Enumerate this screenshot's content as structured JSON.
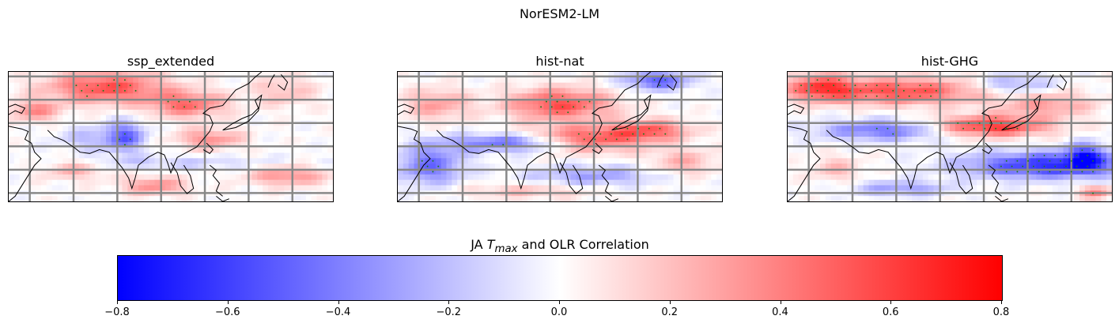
{
  "figure": {
    "suptitle": "NorESM2-LM",
    "panels": [
      {
        "title": "ssp_extended"
      },
      {
        "title": "hist-nat"
      },
      {
        "title": "hist-GHG"
      }
    ],
    "colorbar": {
      "label_prefix": "JA ",
      "label_var": "T",
      "label_sub": "max",
      "label_suffix": " and OLR Correlation",
      "cmap": "bwr",
      "range": [
        -0.8,
        0.8
      ],
      "ticks": [
        "−0.8",
        "−0.6",
        "−0.4",
        "−0.2",
        "0.0",
        "0.2",
        "0.4",
        "0.6",
        "0.8"
      ],
      "colors": {
        "low": "#0000ff",
        "mid": "#ffffff",
        "high": "#ff0000"
      }
    },
    "gridline_color": "#888888",
    "coastline_color": "#000000",
    "stipple_color": "#1e7a1e"
  },
  "chart_data": {
    "type": "heatmap",
    "title": "NorESM2-LM",
    "colorbar_label": "JA T_max and OLR Correlation",
    "vmin": -0.8,
    "vmax": 0.8,
    "panels": [
      {
        "name": "ssp_extended"
      },
      {
        "name": "hist-nat"
      },
      {
        "name": "hist-GHG"
      }
    ]
  }
}
